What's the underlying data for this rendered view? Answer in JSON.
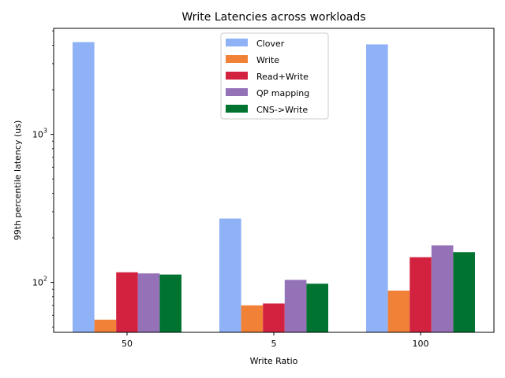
{
  "chart_data": {
    "type": "bar",
    "title": "Write Latencies across workloads",
    "xlabel": "Write Ratio",
    "ylabel": "99th percentile latency (us)",
    "yscale": "log",
    "ylim": [
      46,
      5200
    ],
    "yticks": [
      {
        "value": 100,
        "base": "10",
        "exp": "2"
      },
      {
        "value": 1000,
        "base": "10",
        "exp": "3"
      }
    ],
    "categories": [
      "50",
      "5",
      "100"
    ],
    "legend_position": "top-center",
    "series": [
      {
        "name": "Clover",
        "color": "#8fb1f6",
        "values": [
          4200,
          270,
          4050
        ]
      },
      {
        "name": "Write",
        "color": "#f08136",
        "values": [
          56,
          70,
          88
        ]
      },
      {
        "name": "Read+Write",
        "color": "#d2223f",
        "values": [
          117,
          72,
          148
        ]
      },
      {
        "name": "QP mapping",
        "color": "#9571b8",
        "values": [
          115,
          104,
          178
        ]
      },
      {
        "name": "CNS->Write",
        "color": "#007331",
        "values": [
          113,
          98,
          160
        ]
      }
    ]
  }
}
